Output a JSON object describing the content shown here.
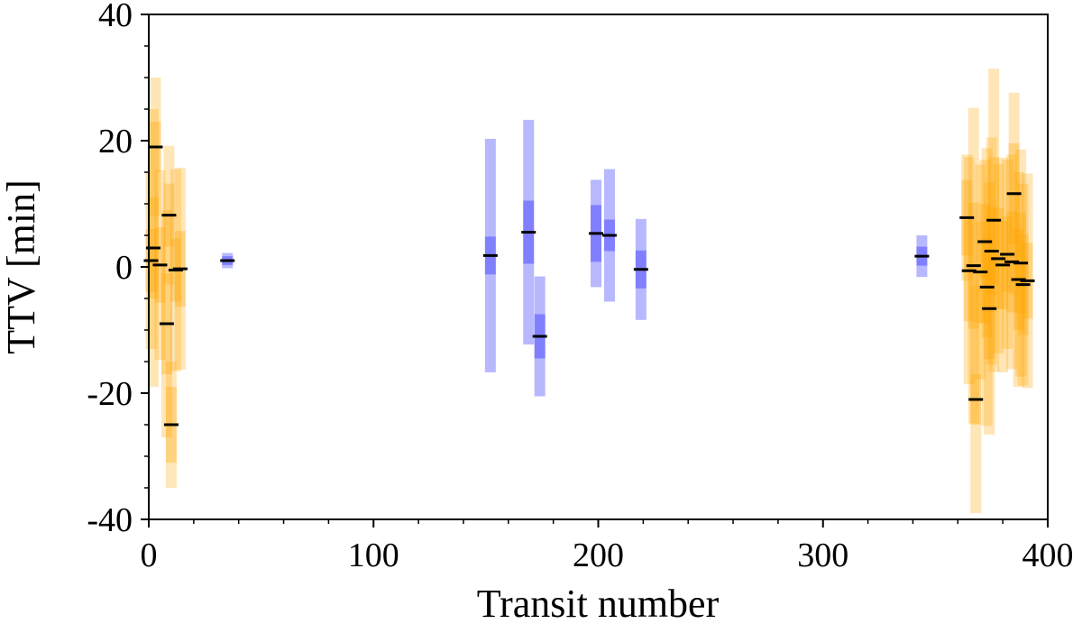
{
  "chart_data": {
    "type": "errorbar",
    "xlabel": "Transit number",
    "ylabel": "TTV [min]",
    "xlim": [
      0,
      400
    ],
    "ylim": [
      -40,
      40
    ],
    "xticks": [
      0,
      100,
      200,
      300,
      400
    ],
    "yticks": [
      -40,
      -20,
      0,
      20,
      40
    ],
    "xminorticks": [
      20,
      40,
      60,
      80,
      120,
      140,
      160,
      180,
      220,
      240,
      260,
      280,
      320,
      340,
      360,
      380
    ],
    "yminorticks": [
      -35,
      -30,
      -25,
      -15,
      -10,
      -5,
      5,
      10,
      15,
      25,
      30,
      35
    ],
    "series": [
      {
        "color": "#ffa500",
        "x": [
          1,
          2,
          3,
          5,
          8,
          9,
          10,
          12,
          14,
          364,
          365,
          367,
          368,
          370,
          372,
          373,
          374,
          375,
          376,
          378,
          380,
          382,
          384,
          385,
          387,
          388,
          389,
          391
        ],
        "values": [
          1,
          3,
          19,
          0.3,
          -9,
          8.2,
          -25,
          -0.5,
          -0.3,
          7.8,
          -0.6,
          0.2,
          -21,
          -0.8,
          4,
          -3.2,
          -6.6,
          2.5,
          7.4,
          1.3,
          0.3,
          2.0,
          0.8,
          11.6,
          -2.0,
          0.6,
          -2.8,
          -2.2
        ],
        "err1": [
          5,
          8,
          4,
          6,
          8,
          5,
          6,
          5,
          6,
          6,
          8,
          10,
          4,
          8,
          6,
          8,
          8,
          7,
          10,
          8,
          7,
          6,
          8,
          8,
          8,
          8,
          8,
          6
        ],
        "err2": [
          14,
          22,
          11,
          15,
          18,
          11,
          10,
          16,
          16,
          10,
          18,
          25,
          18,
          17,
          13,
          22,
          20,
          18,
          24,
          15,
          17,
          15,
          17,
          16,
          17,
          18,
          16,
          17
        ]
      },
      {
        "color": "#0000ff",
        "x": [
          35,
          152,
          169,
          174,
          199,
          205,
          219,
          344
        ],
        "values": [
          1,
          1.8,
          5.5,
          -11,
          5.3,
          5.0,
          -0.4,
          1.7
        ],
        "err1": [
          0.7,
          3,
          5,
          3.5,
          4.5,
          2.5,
          3,
          1.5
        ],
        "err2": [
          1.2,
          18.5,
          17.8,
          9.5,
          8.5,
          10.5,
          8,
          3.3
        ]
      }
    ]
  }
}
